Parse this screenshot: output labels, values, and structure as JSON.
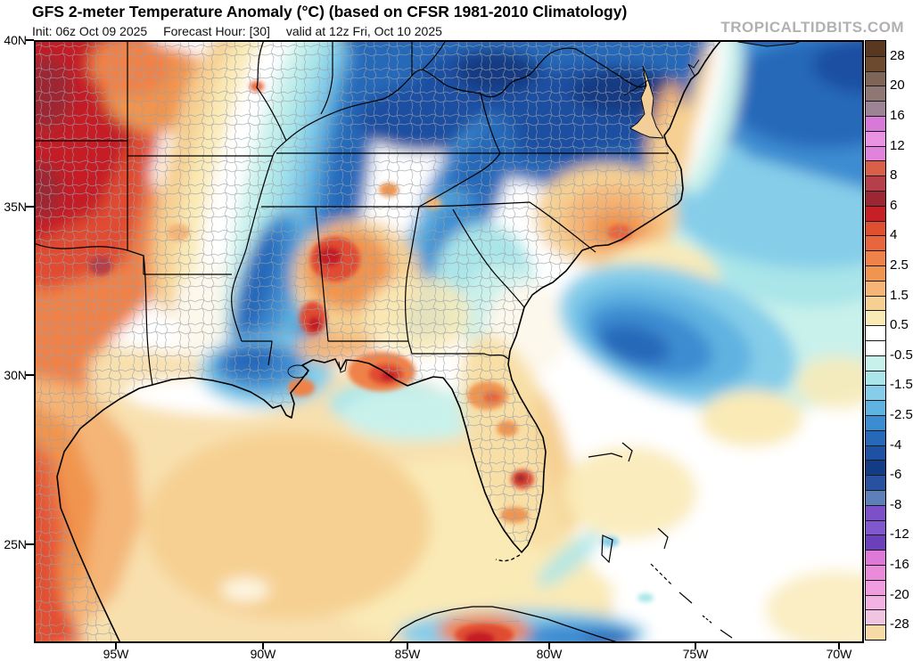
{
  "header": {
    "title": "GFS 2-meter Temperature Anomaly (°C) (based on CFSR 1981-2010 Climatology)",
    "init_label": "Init: 06z Oct 09 2025",
    "forecast_hour_label": "Forecast Hour: [30]",
    "valid_label": "valid at 12z Fri, Oct 10 2025",
    "watermark": "TROPICALTIDBITS.COM"
  },
  "map": {
    "lat_ticks": [
      "40N",
      "35N",
      "30N",
      "25N"
    ],
    "lon_ticks": [
      "95W",
      "90W",
      "85W",
      "80W",
      "75W",
      "70W"
    ]
  },
  "colorbar": {
    "unit": "°C",
    "tick_labels": [
      "28",
      "20",
      "16",
      "12",
      "8",
      "6",
      "4",
      "2.5",
      "1.5",
      "0.5",
      "-0.5",
      "-1.5",
      "-2.5",
      "-4",
      "-6",
      "-8",
      "-12",
      "-16",
      "-20",
      "-28"
    ],
    "cell_colors": [
      "#5a3820",
      "#6b4a2f",
      "#7e6557",
      "#8f7874",
      "#9c8495",
      "#d779d9",
      "#ea92e4",
      "#e183dd",
      "#d95f48",
      "#b64049",
      "#9c2732",
      "#c62026",
      "#e14f31",
      "#e8663d",
      "#ef8248",
      "#f0954f",
      "#f4b577",
      "#f6d092",
      "#faeab6",
      "#ffffff",
      "#ffffff",
      "#c9f1eb",
      "#a9e5e9",
      "#85cde9",
      "#60b2e1",
      "#3c8cd1",
      "#2769b9",
      "#1e51a3",
      "#123c85",
      "#28519f",
      "#5d80ba",
      "#7b50c9",
      "#8157cd",
      "#6a40bd",
      "#df79d7",
      "#e98bd8",
      "#f09ddf",
      "#f2b3e2",
      "#efc5e1",
      "#f7dba6"
    ]
  }
}
